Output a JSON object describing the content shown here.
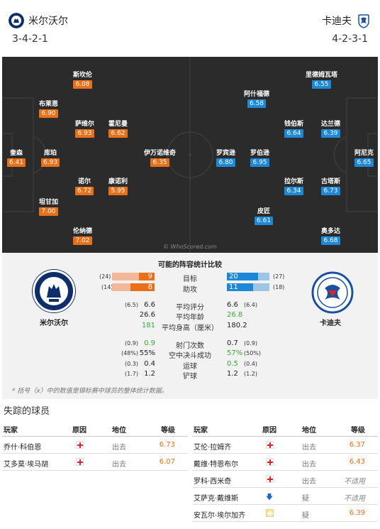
{
  "header": {
    "home_name": "米尔沃尔",
    "away_name": "卡迪夫",
    "home_formation": "3-4-2-1",
    "away_formation": "4-2-3-1"
  },
  "pitch": {
    "watermark": "© WhoScored.com",
    "home_players": [
      {
        "name": "斯坎伦",
        "rating": "6.08"
      },
      {
        "name": "布莱恩",
        "rating": "6.90"
      },
      {
        "name": "萨维尔",
        "rating": "6.93"
      },
      {
        "name": "霍尼曼",
        "rating": "6.62"
      },
      {
        "name": "奎森",
        "rating": "6.41"
      },
      {
        "name": "库珀",
        "rating": "6.93"
      },
      {
        "name": "伊万诺维奇",
        "rating": "6.35"
      },
      {
        "name": "诺尔",
        "rating": "6.72"
      },
      {
        "name": "康诺利",
        "rating": "5.95"
      },
      {
        "name": "坦甘加",
        "rating": "7.00"
      },
      {
        "name": "伦纳德",
        "rating": "7.02"
      }
    ],
    "away_players": [
      {
        "name": "里德姆瓦塔",
        "rating": "6.55"
      },
      {
        "name": "阿什福德",
        "rating": "6.58"
      },
      {
        "name": "钱伯斯",
        "rating": "6.64"
      },
      {
        "name": "达兰德",
        "rating": "6.39"
      },
      {
        "name": "罗宾逊",
        "rating": "6.80"
      },
      {
        "name": "罗伯逊",
        "rating": "6.95"
      },
      {
        "name": "阿尼克",
        "rating": "6.65"
      },
      {
        "name": "拉尔斯",
        "rating": "6.34"
      },
      {
        "name": "古塔斯",
        "rating": "6.73"
      },
      {
        "name": "皮匠",
        "rating": "6.61"
      },
      {
        "name": "奥多达",
        "rating": "6.68"
      }
    ]
  },
  "compare": {
    "title": "可能的阵容统计比较",
    "home_label": "米尔沃尔",
    "away_label": "卡迪夫",
    "bars": [
      {
        "label": "目标",
        "home": "9",
        "home_season": "(24)",
        "home_frac": 0.375,
        "away": "20",
        "away_season": "(27)",
        "away_frac": 0.74
      },
      {
        "label": "助攻",
        "home": "8",
        "home_season": "(14)",
        "home_frac": 0.57,
        "away": "11",
        "away_season": "(18)",
        "away_frac": 0.61
      }
    ],
    "rows_a": [
      {
        "label": "平均评分",
        "home_small": "(6.5)",
        "home": "6.6",
        "away": "6.6",
        "away_small": "(6.4)",
        "home_green": false,
        "away_green": false
      },
      {
        "label": "平均年龄",
        "home_small": "",
        "home": "26.6",
        "away": "26.8",
        "away_small": "",
        "home_green": false,
        "away_green": true
      },
      {
        "label": "平均身高（厘米）",
        "home_small": "",
        "home": "181",
        "away": "180.2",
        "away_small": "",
        "home_green": true,
        "away_green": false
      }
    ],
    "rows_b": [
      {
        "label": "射门次数",
        "home_small": "(0.9)",
        "home": "0.9",
        "away": "0.7",
        "away_small": "(0.9)",
        "home_green": true,
        "away_green": false
      },
      {
        "label": "空中决斗成功",
        "home_small": "(48%)",
        "home": "55%",
        "away": "57%",
        "away_small": "(50%)",
        "home_green": false,
        "away_green": true
      },
      {
        "label": "运球",
        "home_small": "(0.3)",
        "home": "0.4",
        "away": "0.5",
        "away_small": "(0.4)",
        "home_green": false,
        "away_green": true
      },
      {
        "label": "铲球",
        "home_small": "(1.7)",
        "home": "1.2",
        "away": "1.2",
        "away_small": "(1.2)",
        "home_green": false,
        "away_green": false
      }
    ],
    "footnote": "* 括号（x）中的数值是锦标赛中球员的整体统计数据。"
  },
  "missing": {
    "title": "失踪的球员",
    "headers": {
      "player": "玩家",
      "reason": "原因",
      "status": "地位",
      "grade": "等级"
    },
    "home": [
      {
        "name": "乔什·科伯恩",
        "reason": "injury",
        "status": "出去",
        "grade": "6.73",
        "grade_type": "value"
      },
      {
        "name": "艾多莫·埃马胡",
        "reason": "injury",
        "status": "出去",
        "grade": "6.07",
        "grade_type": "value"
      }
    ],
    "away": [
      {
        "name": "艾伦·拉姆齐",
        "reason": "injury",
        "status": "出去",
        "grade": "6.37",
        "grade_type": "value"
      },
      {
        "name": "戴维·特恩布尔",
        "reason": "injury",
        "status": "出去",
        "grade": "6.43",
        "grade_type": "value"
      },
      {
        "name": "罗科·西米奇",
        "reason": "injury",
        "status": "出去",
        "grade": "不适用",
        "grade_type": "na"
      },
      {
        "name": "艾萨克·戴维斯",
        "reason": "doubt",
        "status": "疑",
        "grade": "不适用",
        "grade_type": "na"
      },
      {
        "name": "安瓦尔·埃尔加齐",
        "reason": "suspension",
        "status": "疑",
        "grade": "6.39",
        "grade_type": "value"
      }
    ]
  },
  "colors": {
    "home": "#e8701a",
    "away": "#1e88d8",
    "pitch": "#2b2b2b",
    "better": "#3aaa35"
  }
}
